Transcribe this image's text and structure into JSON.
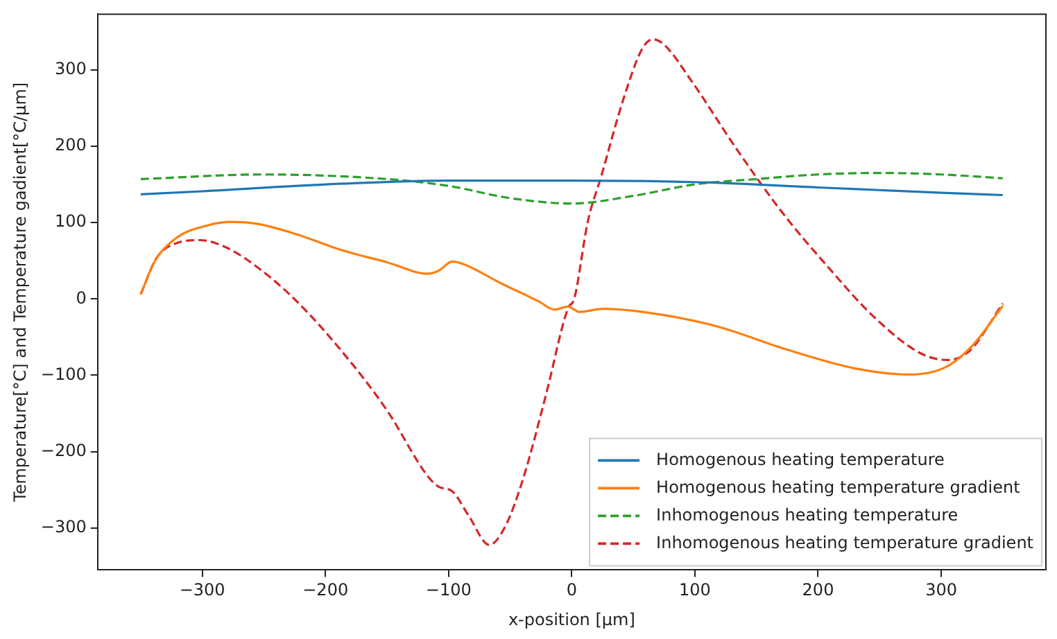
{
  "chart_data": {
    "type": "line",
    "xlabel": "x-position [μm]",
    "ylabel": "Temperature[°C] and Temperature gadient[°C/μm]",
    "xlim": [
      -385,
      385
    ],
    "xticks": [
      -300,
      -200,
      -100,
      0,
      100,
      200,
      300
    ],
    "ylim": [
      -355,
      373
    ],
    "yticks": [
      -300,
      -200,
      -100,
      0,
      100,
      200,
      300
    ],
    "grid": false,
    "legend": "bottom right",
    "marker": "none",
    "series": [
      {
        "name": "Homogenous heating temperature",
        "color": "#1f77b4",
        "line_style": "solid",
        "x": [
          -350,
          -300,
          -200,
          -100,
          0,
          100,
          200,
          300,
          350
        ],
        "values": [
          137,
          141,
          150,
          155,
          155,
          153,
          146,
          139,
          136
        ]
      },
      {
        "name": "Homogenous heating temperature gradient",
        "color": "#ff7f0e",
        "line_style": "solid",
        "x": [
          -350,
          -339,
          -321,
          -299,
          -278,
          -254,
          -224,
          -187,
          -150,
          -117,
          -108,
          -97,
          -87,
          -57,
          -27,
          -14,
          -3,
          2,
          6,
          25,
          62,
          118,
          174,
          230,
          274,
          304,
          326,
          350
        ],
        "values": [
          6,
          48,
          80,
          95,
          101,
          98,
          85,
          64,
          48,
          33,
          37,
          49,
          45,
          20,
          -3,
          -14,
          -10,
          -14,
          -17,
          -13,
          -18,
          -36,
          -66,
          -91,
          -99,
          -89,
          -60,
          -9
        ]
      },
      {
        "name": "Inhomogenous heating temperature",
        "color": "#2ca02c",
        "line_style": "dashed",
        "x": [
          -350,
          -250,
          -150,
          -100,
          -50,
          0,
          50,
          100,
          150,
          200,
          250,
          300,
          350
        ],
        "values": [
          157,
          163,
          157,
          148,
          132,
          125,
          135,
          150,
          157,
          163,
          165,
          163,
          158
        ]
      },
      {
        "name": "Inhomogenous heating temperature gradient",
        "color": "#d62728",
        "line_style": "dashed",
        "x": [
          -350,
          -337,
          -321,
          -302,
          -280,
          -254,
          -224,
          -187,
          -150,
          -117,
          -108,
          -97,
          -84,
          -67,
          -54,
          -39,
          -21,
          -3,
          2,
          13,
          24,
          42,
          57,
          66,
          75,
          97,
          134,
          171,
          208,
          245,
          283,
          305,
          323,
          350
        ],
        "values": [
          6,
          54,
          73,
          77,
          67,
          40,
          -2,
          -68,
          -146,
          -232,
          -246,
          -252,
          -283,
          -322,
          -298,
          -233,
          -126,
          -12,
          0,
          101,
          161,
          262,
          327,
          340,
          333,
          286,
          196,
          113,
          42,
          -23,
          -71,
          -80,
          -68,
          -6
        ]
      }
    ]
  }
}
